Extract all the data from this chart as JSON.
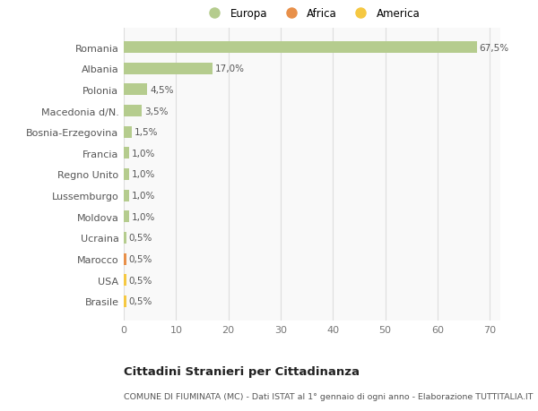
{
  "categories": [
    "Brasile",
    "USA",
    "Marocco",
    "Ucraina",
    "Moldova",
    "Lussemburgo",
    "Regno Unito",
    "Francia",
    "Bosnia-Erzegovina",
    "Macedonia d/N.",
    "Polonia",
    "Albania",
    "Romania"
  ],
  "values": [
    0.5,
    0.5,
    0.5,
    0.5,
    1.0,
    1.0,
    1.0,
    1.0,
    1.5,
    3.5,
    4.5,
    17.0,
    67.5
  ],
  "labels": [
    "0,5%",
    "0,5%",
    "0,5%",
    "0,5%",
    "1,0%",
    "1,0%",
    "1,0%",
    "1,0%",
    "1,5%",
    "3,5%",
    "4,5%",
    "17,0%",
    "67,5%"
  ],
  "colors": [
    "#f5c842",
    "#f5c842",
    "#e8904a",
    "#b5cc8e",
    "#b5cc8e",
    "#b5cc8e",
    "#b5cc8e",
    "#b5cc8e",
    "#b5cc8e",
    "#b5cc8e",
    "#b5cc8e",
    "#b5cc8e",
    "#b5cc8e"
  ],
  "legend_labels": [
    "Europa",
    "Africa",
    "America"
  ],
  "legend_colors": [
    "#b5cc8e",
    "#e8904a",
    "#f5c842"
  ],
  "xlim": [
    0,
    72
  ],
  "xticks": [
    0,
    10,
    20,
    30,
    40,
    50,
    60,
    70
  ],
  "title_main": "Cittadini Stranieri per Cittadinanza",
  "title_sub": "COMUNE DI FIUMINATA (MC) - Dati ISTAT al 1° gennaio di ogni anno - Elaborazione TUTTITALIA.IT",
  "bg_color": "#ffffff",
  "plot_bg_color": "#f9f9f9",
  "grid_color": "#dddddd",
  "bar_height": 0.55
}
